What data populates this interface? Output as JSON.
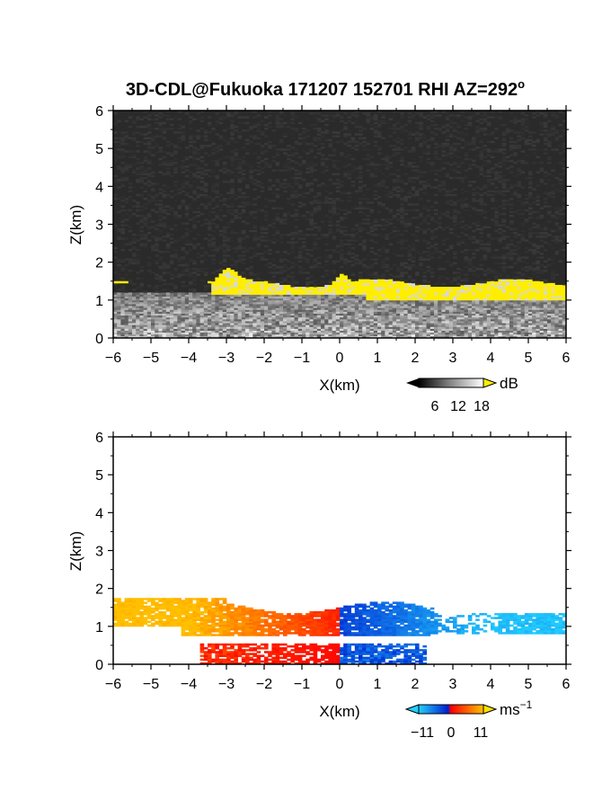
{
  "title": "3D-CDL@Fukuoka 171207 152701 RHI AZ=292",
  "title_superscript": "o",
  "chart_data": [
    {
      "type": "heatmap",
      "panel": "top",
      "quantity": "backscatter (grayscale, yellow = high)",
      "xlabel": "X(km)",
      "ylabel": "Z(km)",
      "xlim": [
        -6,
        6
      ],
      "ylim": [
        0,
        6
      ],
      "xticks": [
        -6,
        -5,
        -4,
        -3,
        -2,
        -1,
        0,
        1,
        2,
        3,
        4,
        5,
        6
      ],
      "xtick_labels": [
        "−6",
        "−5",
        "−4",
        "−3",
        "−2",
        "−1",
        "0",
        "1",
        "2",
        "3",
        "4",
        "5",
        "6"
      ],
      "yticks": [
        0,
        1,
        2,
        3,
        4,
        5,
        6
      ],
      "ytick_labels": [
        "0",
        "1",
        "2",
        "3",
        "4",
        "5",
        "6"
      ],
      "colorbar": {
        "unit": "dB",
        "tick_values": [
          6,
          12,
          18
        ],
        "tick_labels": [
          "6",
          "12",
          "18"
        ],
        "colors": {
          "low": "#000000",
          "mid": "#888888",
          "high": "#ffffff",
          "over": "#ffee00"
        }
      },
      "background_color": "#2a2a2a",
      "highlight_color": "#ffee00",
      "layers": [
        {
          "name": "yellow cloud layer",
          "x_range": [
            -6,
            6
          ],
          "z_base": 1.1,
          "z_top": 1.65
        },
        {
          "name": "gray boundary layer",
          "x_range": [
            -6,
            6
          ],
          "z_base": 0.0,
          "z_top": 1.2
        }
      ]
    },
    {
      "type": "heatmap",
      "panel": "bottom",
      "quantity": "radial velocity",
      "xlabel": "X(km)",
      "ylabel": "Z(km)",
      "xlim": [
        -6,
        6
      ],
      "ylim": [
        0,
        6
      ],
      "xticks": [
        -6,
        -5,
        -4,
        -3,
        -2,
        -1,
        0,
        1,
        2,
        3,
        4,
        5,
        6
      ],
      "xtick_labels": [
        "−6",
        "−5",
        "−4",
        "−3",
        "−2",
        "−1",
        "0",
        "1",
        "2",
        "3",
        "4",
        "5",
        "6"
      ],
      "yticks": [
        0,
        1,
        2,
        3,
        4,
        5,
        6
      ],
      "ytick_labels": [
        "0",
        "1",
        "2",
        "3",
        "4",
        "5",
        "6"
      ],
      "colorbar": {
        "unit": "ms",
        "unit_exponent": "−1",
        "tick_values": [
          -11,
          0,
          11
        ],
        "tick_labels": [
          "−11",
          "0",
          "11"
        ],
        "colors": {
          "min": "#22d0ff",
          "neg": "#0020d0",
          "zero": "#ff0000",
          "pos": "#ffc000"
        }
      },
      "velocity_pattern": [
        {
          "x_range": [
            -6,
            -3
          ],
          "z_range": [
            1.0,
            1.9
          ],
          "approx_velocity": 8
        },
        {
          "x_range": [
            -3,
            0
          ],
          "z_range": [
            0.8,
            1.8
          ],
          "approx_velocity": 3
        },
        {
          "x_range": [
            0,
            2.5
          ],
          "z_range": [
            0.7,
            1.8
          ],
          "approx_velocity": -4
        },
        {
          "x_range": [
            2.5,
            6
          ],
          "z_range": [
            0.6,
            1.4
          ],
          "approx_velocity": -9
        },
        {
          "x_range": [
            -3.7,
            0
          ],
          "z_range": [
            0.0,
            0.6
          ],
          "approx_velocity": 1
        },
        {
          "x_range": [
            0,
            2.4
          ],
          "z_range": [
            0.0,
            0.6
          ],
          "approx_velocity": -2
        }
      ]
    }
  ]
}
